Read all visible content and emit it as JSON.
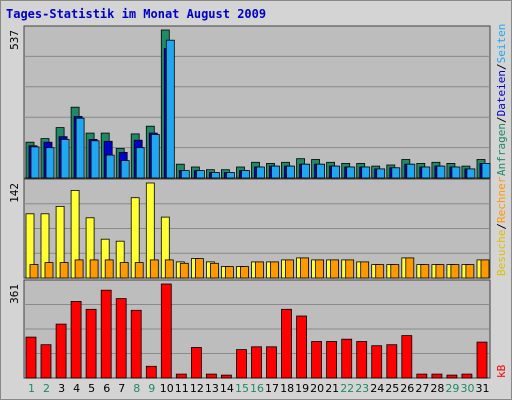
{
  "chart_data": {
    "type": "bar",
    "title": "Tages-Statistik im Monat August 2009",
    "categories": [
      "1",
      "2",
      "3",
      "4",
      "5",
      "6",
      "7",
      "8",
      "9",
      "10",
      "11",
      "12",
      "13",
      "14",
      "15",
      "16",
      "17",
      "18",
      "19",
      "20",
      "21",
      "22",
      "23",
      "24",
      "25",
      "26",
      "27",
      "28",
      "29",
      "30",
      "31"
    ],
    "weekend_days": [
      "1",
      "2",
      "8",
      "9",
      "15",
      "16",
      "22",
      "23",
      "29",
      "30"
    ],
    "grid": true,
    "panels": [
      {
        "name": "hits",
        "max_label": "537",
        "ymax": 537,
        "series": [
          {
            "name": "Anfragen",
            "color": "#1f8a64",
            "values": [
              130,
              143,
              183,
              257,
              163,
              163,
              107,
              160,
              188,
              537,
              50,
              40,
              30,
              30,
              40,
              57,
              53,
              57,
              70,
              67,
              57,
              53,
              53,
              43,
              47,
              67,
              53,
              57,
              53,
              43,
              67
            ]
          },
          {
            "name": "Dateien",
            "color": "#0000cc",
            "values": [
              117,
              130,
              150,
              223,
              140,
              133,
              93,
              137,
              163,
              470,
              27,
              27,
              20,
              20,
              27,
              40,
              43,
              43,
              50,
              50,
              43,
              40,
              40,
              33,
              37,
              50,
              40,
              43,
              40,
              33,
              53
            ]
          },
          {
            "name": "Seiten",
            "color": "#1fa8ef",
            "values": [
              113,
              110,
              140,
              217,
              135,
              83,
              63,
              110,
              158,
              500,
              27,
              27,
              20,
              20,
              27,
              40,
              43,
              43,
              50,
              50,
              43,
              40,
              40,
              33,
              37,
              50,
              40,
              43,
              40,
              33,
              53
            ]
          }
        ]
      },
      {
        "name": "visits",
        "max_label": "142",
        "ymax": 142,
        "series": [
          {
            "name": "Besuche",
            "color": "#ffff33",
            "values": [
              96,
              96,
              107,
              131,
              90,
              58,
              55,
              120,
              142,
              91,
              24,
              29,
              24,
              17,
              17,
              24,
              24,
              27,
              30,
              27,
              27,
              27,
              24,
              20,
              20,
              30,
              20,
              20,
              20,
              20,
              27
            ]
          },
          {
            "name": "Rechner",
            "color": "#ff9900",
            "values": [
              20,
              23,
              23,
              27,
              27,
              27,
              23,
              23,
              27,
              27,
              22,
              29,
              22,
              17,
              17,
              24,
              24,
              27,
              30,
              27,
              27,
              27,
              24,
              20,
              20,
              30,
              20,
              20,
              20,
              20,
              27
            ]
          }
        ]
      },
      {
        "name": "kb",
        "max_label": "361",
        "ymax": 361,
        "series": [
          {
            "name": "kB",
            "color": "#ff0000",
            "values": [
              157,
              128,
              207,
              294,
              264,
              337,
              305,
              260,
              45,
              361,
              15,
              117,
              15,
              11,
              109,
              120,
              120,
              264,
              238,
              140,
              140,
              149,
              140,
              124,
              128,
              163,
              15,
              15,
              11,
              15,
              138
            ]
          }
        ]
      }
    ],
    "right_legend": {
      "top": [
        {
          "text": "Anfragen",
          "color": "#1f8a64"
        },
        {
          "text": "/",
          "color": "#000000"
        },
        {
          "text": "Dateien",
          "color": "#0000cc"
        },
        {
          "text": "/",
          "color": "#000000"
        },
        {
          "text": "Seiten",
          "color": "#1fa8ef"
        }
      ],
      "middle": [
        {
          "text": "Besuche",
          "color": "#e0c000"
        },
        {
          "text": "/",
          "color": "#000000"
        },
        {
          "text": "Rechner",
          "color": "#ff9900"
        }
      ],
      "bottom": [
        {
          "text": "kB",
          "color": "#ff0000"
        }
      ]
    },
    "colors": {
      "title": "#0000cc",
      "panel_bg": "#bdbdbd",
      "frame_bg": "#d4d4d4",
      "weekday_label": "#000000",
      "weekend_label": "#1f8a64"
    }
  }
}
